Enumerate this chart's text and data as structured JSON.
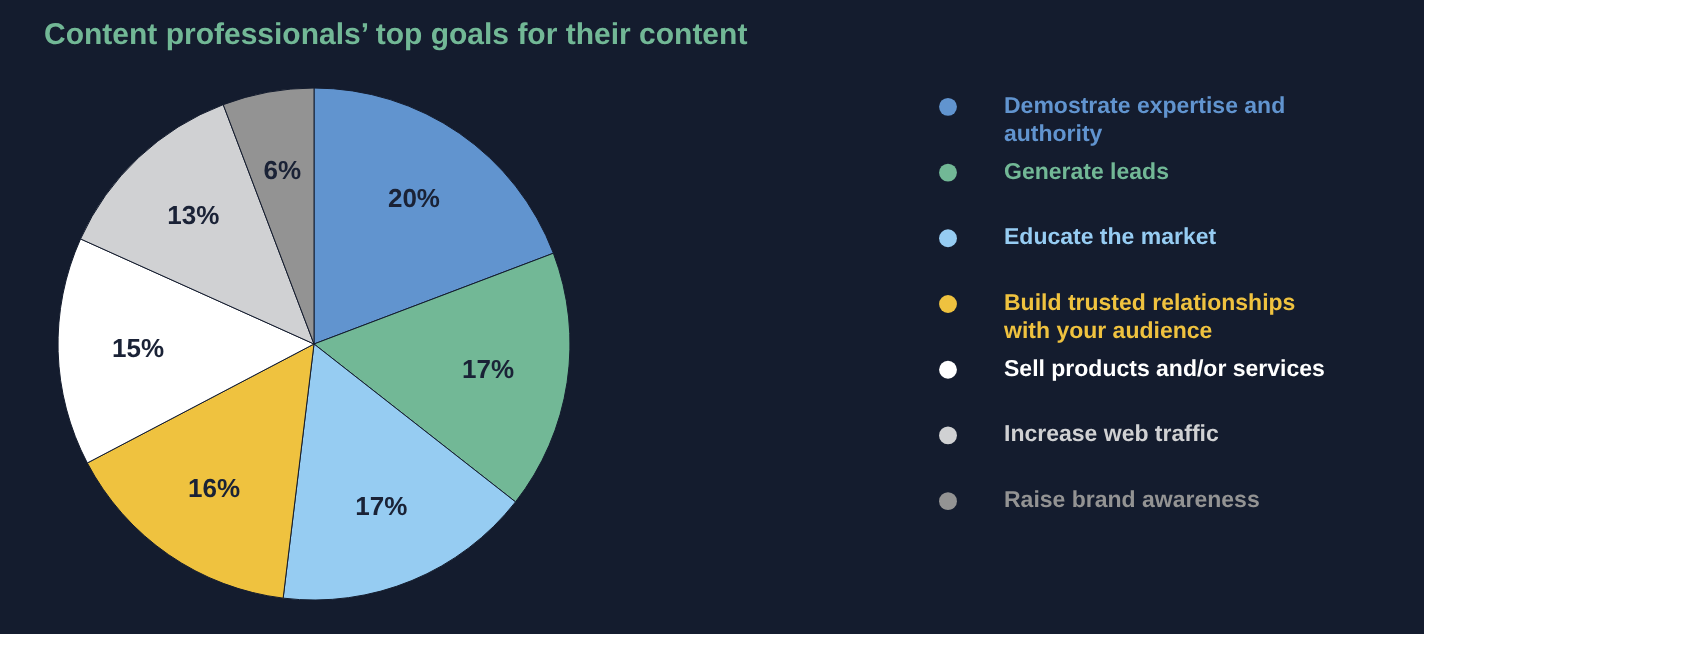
{
  "chart_data": {
    "type": "pie",
    "title": "Content professionals’ top goals for their content",
    "categories": [
      "Demostrate expertise and authority",
      "Generate leads",
      "Educate the market",
      "Build trusted relationships with your audience",
      "Sell products and/or services",
      "Increase web traffic",
      "Raise brand awareness"
    ],
    "values": [
      20,
      17,
      17,
      16,
      15,
      13,
      6
    ],
    "value_labels": [
      "20%",
      "17%",
      "17%",
      "16%",
      "15%",
      "13%",
      "6%"
    ],
    "colors": [
      "#6194cf",
      "#72b896",
      "#96ccf2",
      "#efc23f",
      "#ffffff",
      "#d0d1d3",
      "#939393"
    ],
    "legend": "right"
  }
}
